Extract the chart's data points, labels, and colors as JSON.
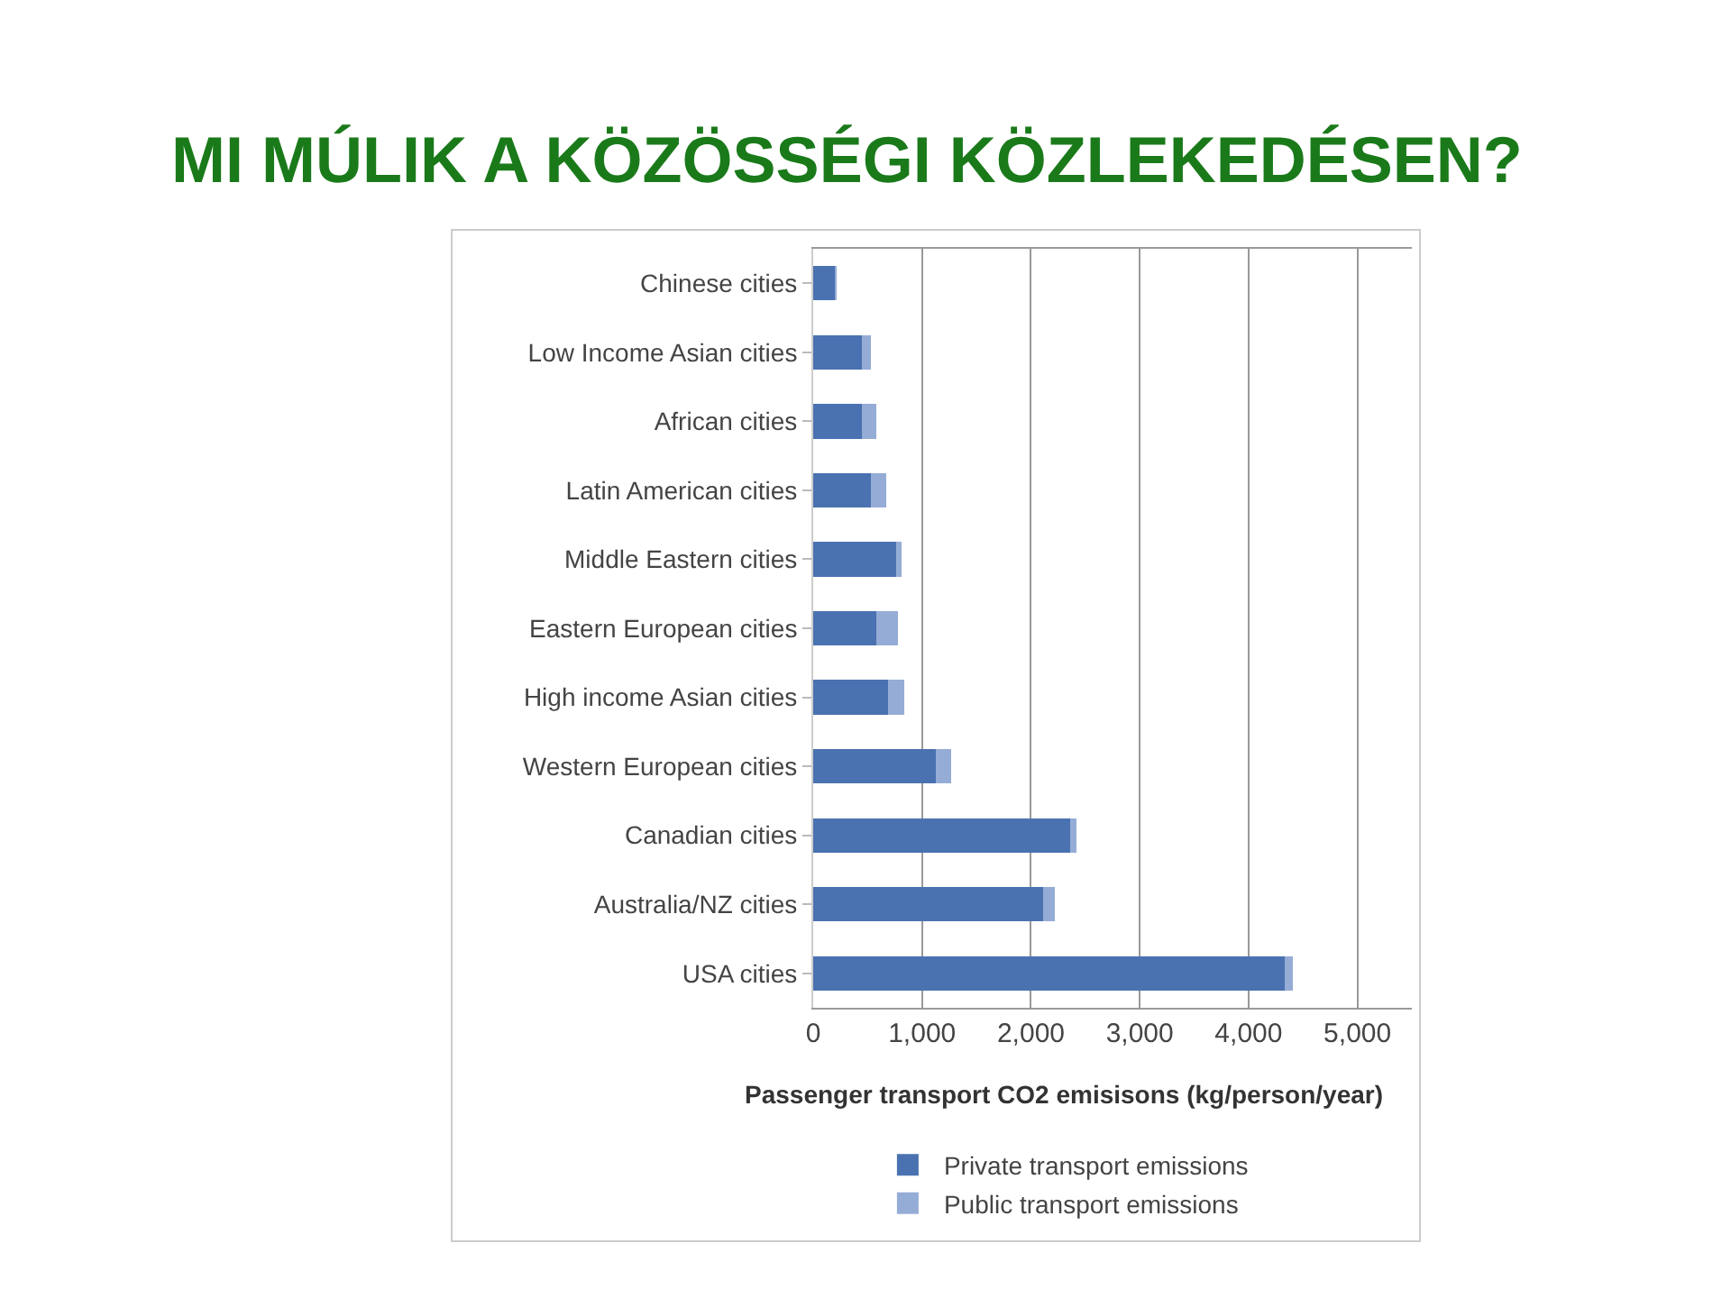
{
  "chart_data": {
    "type": "bar",
    "orientation": "horizontal",
    "stacked": true,
    "title": "MI MÚLIK A KÖZÖSSÉGI KÖZLEKEDÉSEN?",
    "xlabel": "Passenger transport CO2 emisisons (kg/person/year)",
    "categories": [
      "Chinese cities",
      "Low Income Asian cities",
      "African cities",
      "Latin American cities",
      "Middle Eastern cities",
      "Eastern European cities",
      "High income Asian cities",
      "Western European cities",
      "Canadian cities",
      "Australia/NZ cities",
      "USA cities"
    ],
    "series": [
      {
        "name": "Private transport emissions",
        "color": "#4a72b0",
        "values": [
          200,
          450,
          450,
          530,
          760,
          580,
          690,
          1130,
          2360,
          2110,
          4330
        ]
      },
      {
        "name": "Public transport emissions",
        "color": "#95acd6",
        "values": [
          10,
          80,
          130,
          140,
          50,
          200,
          150,
          140,
          60,
          110,
          80
        ]
      }
    ],
    "xlim": [
      0,
      5500
    ],
    "xticks": [
      0,
      {
        "value": 1000,
        "label": "1,000"
      },
      {
        "value": 2000,
        "label": "2,000"
      },
      {
        "value": 3000,
        "label": "3,000"
      },
      {
        "value": 4000,
        "label": "4,000"
      },
      {
        "value": 5000,
        "label": "5,000"
      }
    ],
    "grid": "x",
    "legend": "bottom"
  }
}
